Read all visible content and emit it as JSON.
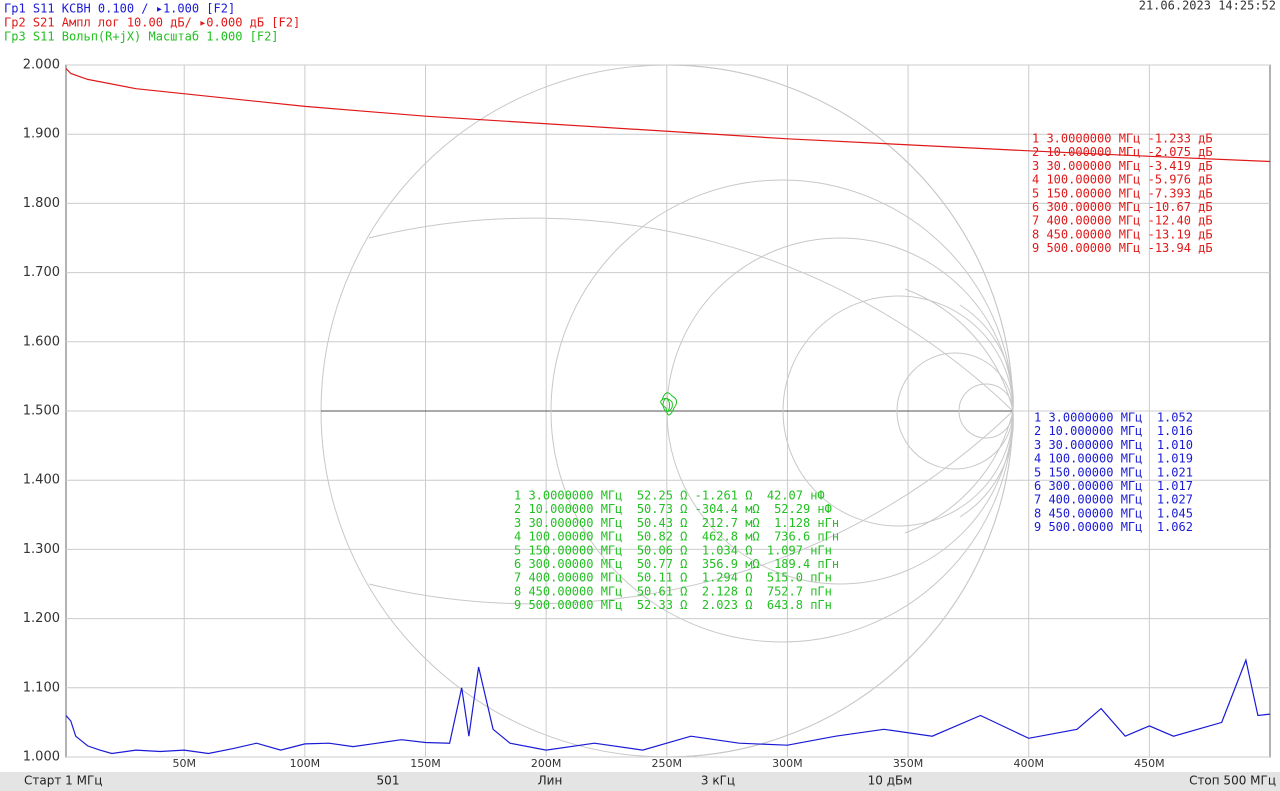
{
  "chart_data": {
    "type": "line",
    "header": [
      "Гр1 S11 КСВН 0.100 / ▸1.000  [F2]",
      "Гр2 S21 Ампл лог 10.00 дБ/ ▸0.000 дБ [F2]",
      "Гр3 S11 Вольп(R+jX) Масштаб 1.000  [F2]"
    ],
    "timestamp": "21.06.2023 14:25:52",
    "status_bar": [
      "Старт 1 МГц",
      "501",
      "Лин",
      "3 кГц",
      "10 дБм",
      "Стоп 500 МГц"
    ],
    "xlim": [
      1,
      500
    ],
    "xticks": [
      {
        "value": 50,
        "label": "50М"
      },
      {
        "value": 100,
        "label": "100М"
      },
      {
        "value": 150,
        "label": "150М"
      },
      {
        "value": 200,
        "label": "200М"
      },
      {
        "value": 250,
        "label": "250М"
      },
      {
        "value": 300,
        "label": "300М"
      },
      {
        "value": 350,
        "label": "350М"
      },
      {
        "value": 400,
        "label": "400М"
      },
      {
        "value": 450,
        "label": "450М"
      }
    ],
    "ylim": [
      1,
      2
    ],
    "yticks": [
      {
        "value": 1,
        "label": "1.000"
      },
      {
        "value": 1.1,
        "label": "1.100"
      },
      {
        "value": 1.2,
        "label": "1.200"
      },
      {
        "value": 1.3,
        "label": "1.300"
      },
      {
        "value": 1.4,
        "label": "1.400"
      },
      {
        "value": 1.5,
        "label": "1.500"
      },
      {
        "value": 1.6,
        "label": "1.600"
      },
      {
        "value": 1.7,
        "label": "1.700"
      },
      {
        "value": 1.8,
        "label": "1.800"
      },
      {
        "value": 1.9,
        "label": "1.900"
      },
      {
        "value": 2,
        "label": "2.000"
      }
    ],
    "y2lim": [
      -100,
      0
    ],
    "grid": true,
    "series": [
      {
        "name": "S11 КСВН",
        "color": "#1a1ad6",
        "x": [
          1,
          3,
          5,
          10,
          15,
          20,
          30,
          40,
          50,
          60,
          70,
          80,
          90,
          100,
          110,
          120,
          130,
          140,
          150,
          160,
          165,
          168,
          172,
          178,
          185,
          200,
          220,
          240,
          260,
          280,
          300,
          320,
          340,
          360,
          380,
          400,
          420,
          430,
          440,
          450,
          460,
          480,
          490,
          495,
          500
        ],
        "values": [
          1.06,
          1.052,
          1.03,
          1.016,
          1.01,
          1.005,
          1.01,
          1.008,
          1.01,
          1.005,
          1.012,
          1.02,
          1.01,
          1.019,
          1.02,
          1.015,
          1.02,
          1.025,
          1.021,
          1.02,
          1.1,
          1.03,
          1.13,
          1.04,
          1.02,
          1.01,
          1.02,
          1.01,
          1.03,
          1.02,
          1.017,
          1.03,
          1.04,
          1.03,
          1.06,
          1.027,
          1.04,
          1.07,
          1.03,
          1.045,
          1.03,
          1.05,
          1.14,
          1.06,
          1.062
        ]
      },
      {
        "name": "S21 Ампл лог",
        "color": "#e01818",
        "axis": "y2",
        "x": [
          1,
          3,
          10,
          30,
          100,
          150,
          300,
          400,
          450,
          500
        ],
        "values": [
          -0.5,
          -1.233,
          -2.075,
          -3.419,
          -5.976,
          -7.393,
          -10.67,
          -12.4,
          -13.19,
          -13.94
        ]
      }
    ],
    "marker_tables": [
      {
        "color": "#e01818",
        "rows": [
          "1 3.0000000 МГц -1.233 дБ",
          "2 10.000000 МГц -2.075 дБ",
          "3 30.000000 МГц -3.419 дБ",
          "4 100.00000 МГц -5.976 дБ",
          "5 150.00000 МГц -7.393 дБ",
          "6 300.00000 МГц -10.67 дБ",
          "7 400.00000 МГц -12.40 дБ",
          "8 450.00000 МГц -13.19 дБ",
          "9 500.00000 МГц -13.94 дБ"
        ]
      },
      {
        "color": "#1a1ad6",
        "rows": [
          "1 3.0000000 МГц  1.052",
          "2 10.000000 МГц  1.016",
          "3 30.000000 МГц  1.010",
          "4 100.00000 МГц  1.019",
          "5 150.00000 МГц  1.021",
          "6 300.00000 МГц  1.017",
          "7 400.00000 МГц  1.027",
          "8 450.00000 МГц  1.045",
          "9 500.00000 МГц  1.062"
        ]
      },
      {
        "color": "#22c022",
        "rows": [
          "1 3.0000000 МГц  52.25 Ω -1.261 Ω  42.07 нФ",
          "2 10.000000 МГц  50.73 Ω -304.4 мΩ  52.29 нФ",
          "3 30.000000 МГц  50.43 Ω  212.7 мΩ  1.128 нГн",
          "4 100.00000 МГц  50.82 Ω  462.8 мΩ  736.6 пГн",
          "5 150.00000 МГц  50.06 Ω  1.034 Ω  1.097 нГн",
          "6 300.00000 МГц  50.77 Ω  356.9 мΩ  189.4 пГн",
          "7 400.00000 МГц  50.11 Ω  1.294 Ω  515.0 пГн",
          "8 450.00000 МГц  50.61 Ω  2.128 Ω  752.7 пГн",
          "9 500.00000 МГц  52.33 Ω  2.023 Ω  643.8 пГн"
        ]
      }
    ]
  }
}
